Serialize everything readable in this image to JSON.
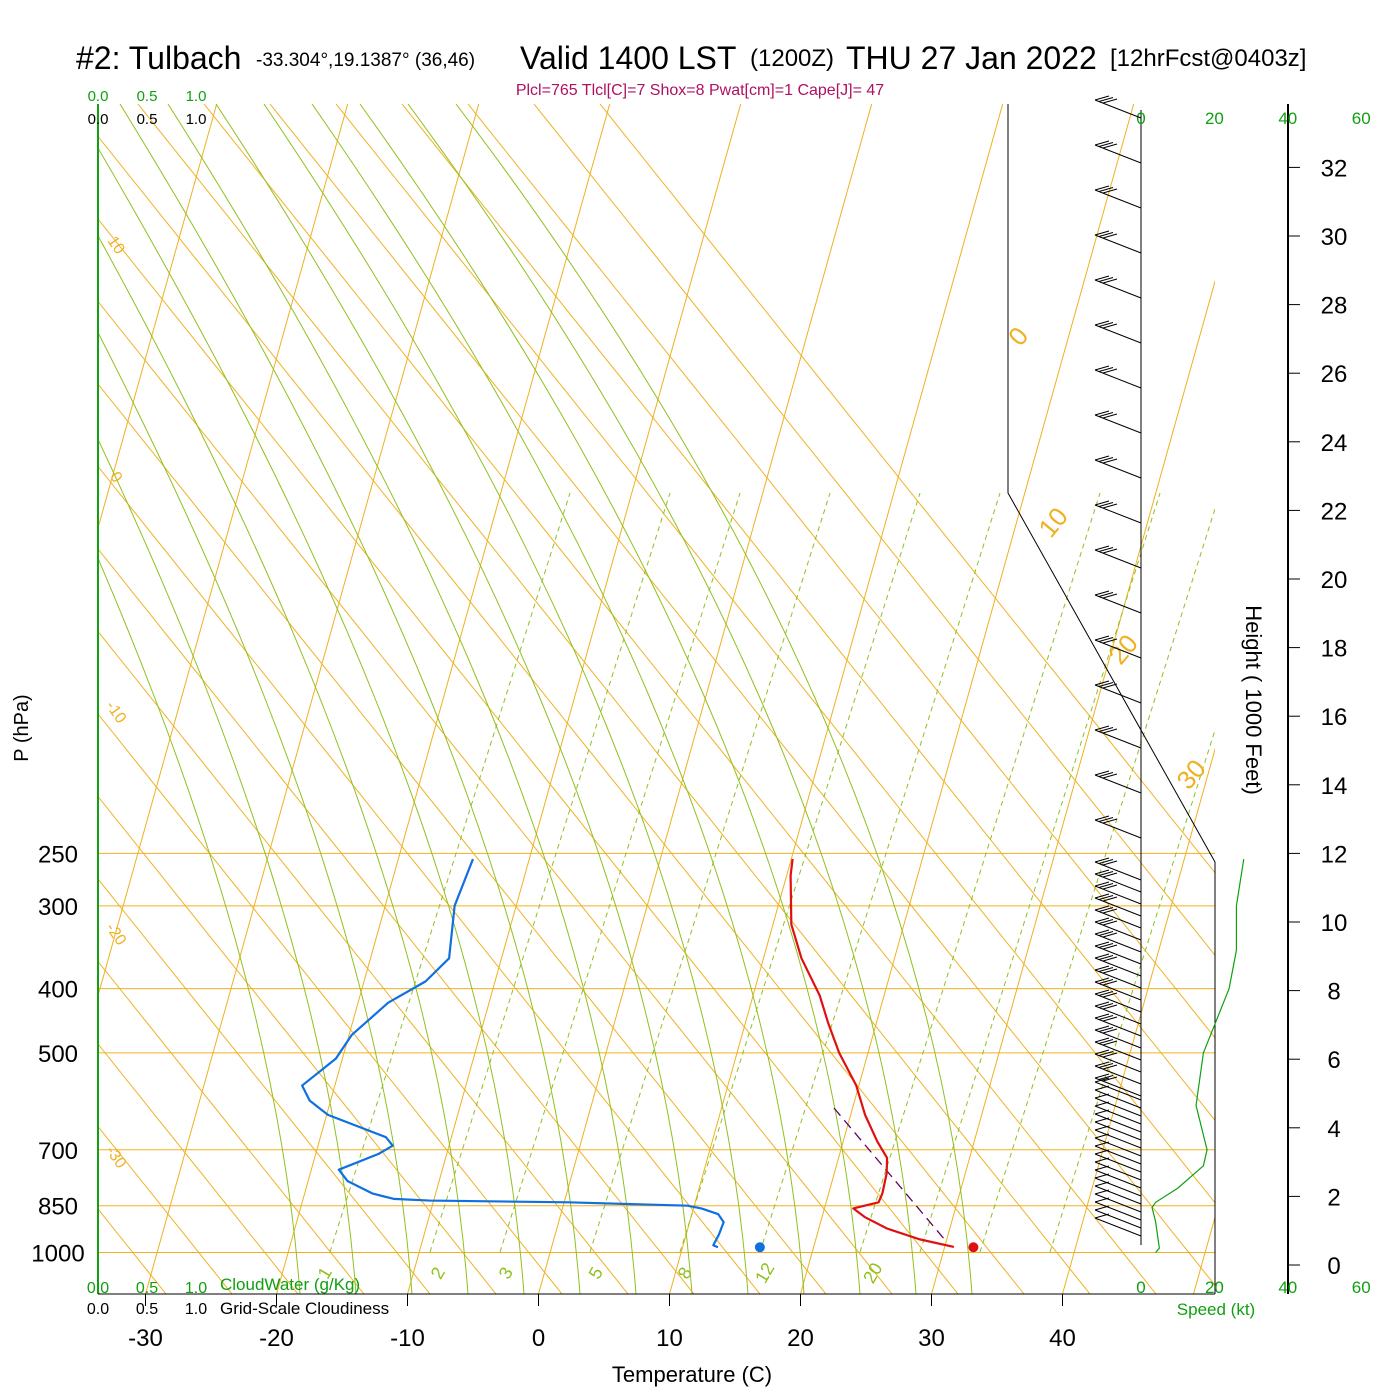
{
  "header": {
    "station": "#2: Tulbach",
    "coords": "-33.304°,19.1387° (36,46)",
    "valid": "Valid 1400 LST",
    "zulu": "(1200Z)",
    "date": "THU 27 Jan 2022",
    "forecast": "[12hrFcst@0403z]",
    "indices": "Plcl=765 Tlcl[C]=7 Shox=8 Pwat[cm]=1 Cape[J]= 47"
  },
  "colors": {
    "isobar": "#f0b020",
    "dry_adiabat": "#90c020",
    "mixing_ratio": "#90c020",
    "temperature": "#e01010",
    "dewpoint": "#1070e0",
    "parcel": "#600060",
    "cloud_axis": "#10a010"
  },
  "chart_data": {
    "type": "line",
    "title": "Skew-T log-P sounding",
    "xlabel": "Temperature (C)",
    "ylabel": "P (hPa)",
    "y2label": "Height ( 1000 Feet)",
    "xlim": [
      -35,
      45
    ],
    "ylim": [
      1000,
      250
    ],
    "x_ticks": [
      "-30",
      "-20",
      "-10",
      "0",
      "10",
      "20",
      "30",
      "40"
    ],
    "pressure_ticks": [
      "250",
      "300",
      "400",
      "500",
      "700",
      "850",
      "1000"
    ],
    "height_ticks": [
      "0",
      "2",
      "4",
      "6",
      "8",
      "10",
      "12",
      "14",
      "16",
      "18",
      "20",
      "22",
      "24",
      "26",
      "28",
      "30",
      "32"
    ],
    "skewed_isotherm_labels_left": [
      "10",
      "0",
      "-10",
      "-20",
      "-30"
    ],
    "skewed_isotherm_labels_right": [
      "0",
      "10",
      "20",
      "30"
    ],
    "mixing_ratio_labels": [
      "1",
      "2",
      "3",
      "5",
      "8",
      "12",
      "20"
    ],
    "temperature_profile_C": [
      [
        981,
        30.7
      ],
      [
        955,
        27.9
      ],
      [
        920,
        25.2
      ],
      [
        885,
        23.3
      ],
      [
        858,
        22.2
      ],
      [
        840,
        24.0
      ],
      [
        815,
        24.1
      ],
      [
        760,
        24.0
      ],
      [
        720,
        23.7
      ],
      [
        680,
        22.6
      ],
      [
        620,
        21.1
      ],
      [
        560,
        19.8
      ],
      [
        500,
        17.8
      ],
      [
        450,
        16.3
      ],
      [
        410,
        15.1
      ],
      [
        360,
        12.9
      ],
      [
        320,
        11.4
      ],
      [
        270,
        10.3
      ],
      [
        255,
        10.1
      ]
    ],
    "dewpoint_profile_C": [
      [
        982,
        12.7
      ],
      [
        975,
        12.3
      ],
      [
        940,
        12.5
      ],
      [
        900,
        12.6
      ],
      [
        875,
        12.0
      ],
      [
        858,
        10.6
      ],
      [
        850,
        9.5
      ],
      [
        840,
        0.3
      ],
      [
        835,
        -10.3
      ],
      [
        830,
        -13.1
      ],
      [
        815,
        -14.8
      ],
      [
        780,
        -17.0
      ],
      [
        750,
        -17.9
      ],
      [
        710,
        -15.2
      ],
      [
        690,
        -14.3
      ],
      [
        670,
        -15.0
      ],
      [
        620,
        -19.9
      ],
      [
        590,
        -21.6
      ],
      [
        560,
        -22.5
      ],
      [
        510,
        -20.5
      ],
      [
        470,
        -19.8
      ],
      [
        420,
        -17.7
      ],
      [
        390,
        -15.3
      ],
      [
        360,
        -14.0
      ],
      [
        300,
        -14.7
      ],
      [
        255,
        -14.3
      ]
    ],
    "surface_temperature_C": 32.2,
    "surface_dewpoint_C": 15.9,
    "wind_speed_axis": {
      "label": "Speed (kt)",
      "ticks_top": [
        "0",
        "20",
        "40",
        "60"
      ],
      "ticks_bottom": [
        "0",
        "20",
        "40",
        "60"
      ],
      "speed_profile_kt": [
        [
          1000,
          4
        ],
        [
          985,
          5
        ],
        [
          900,
          4
        ],
        [
          855,
          3
        ],
        [
          840,
          4
        ],
        [
          800,
          10
        ],
        [
          740,
          17
        ],
        [
          700,
          18
        ],
        [
          600,
          15
        ],
        [
          500,
          17
        ],
        [
          400,
          24
        ],
        [
          350,
          26
        ],
        [
          300,
          26
        ],
        [
          255,
          28
        ]
      ]
    },
    "cloud_axes": {
      "cloudwater_label": "CloudWater (g/Kg)",
      "cloudiness_label": "Grid-Scale Cloudiness",
      "ticks": [
        "0.0",
        "0.5",
        "1.0"
      ]
    }
  }
}
